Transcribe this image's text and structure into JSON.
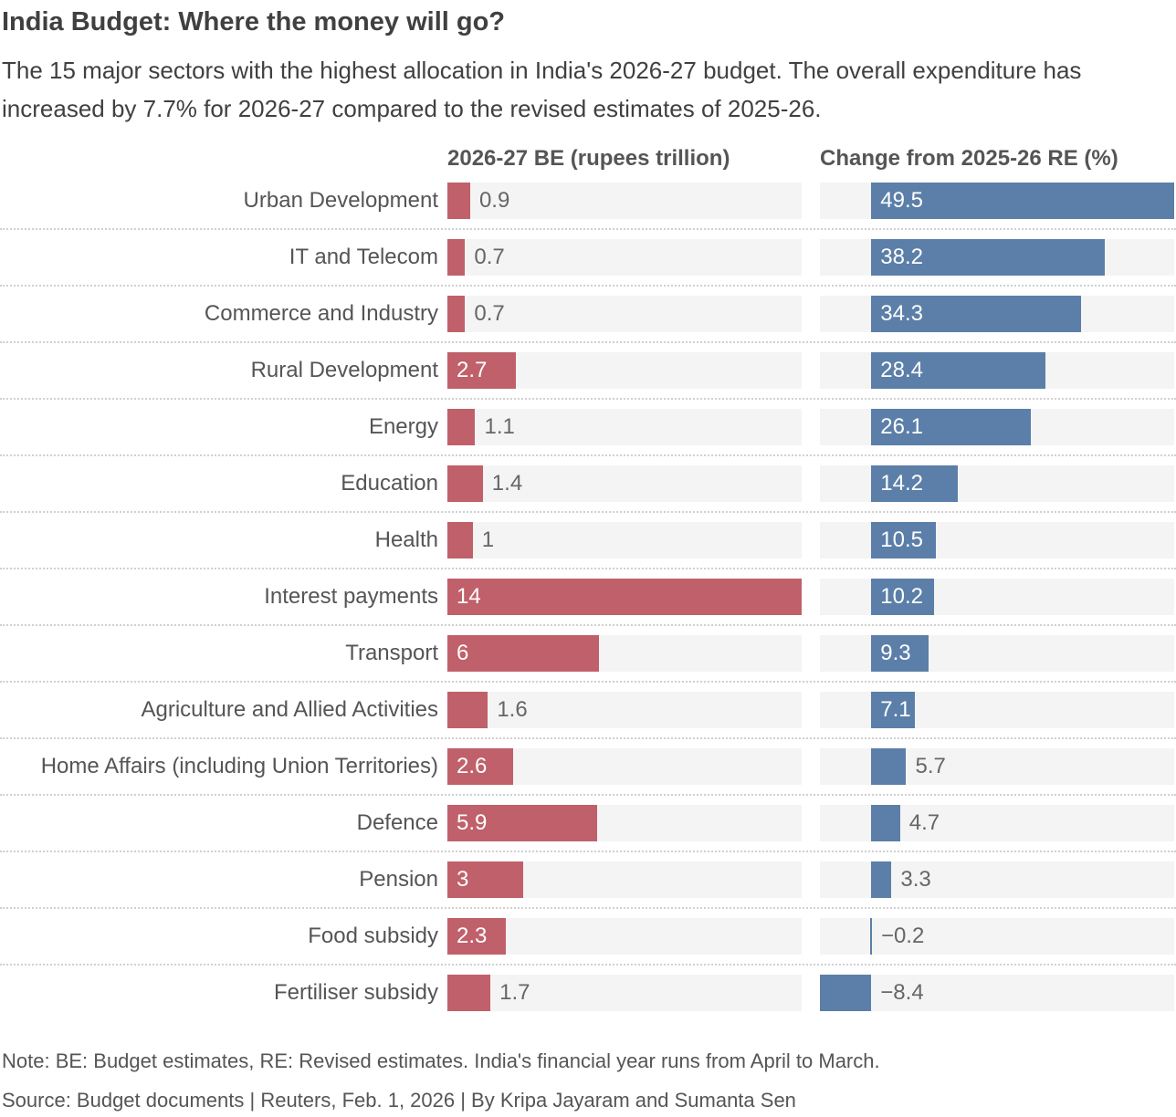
{
  "title": "India Budget: Where the money will go?",
  "subtitle": "The 15 major sectors with the highest allocation in India's 2026-27 budget. The overall expenditure has increased by 7.7% for 2026-27 compared to the revised estimates of 2025-26.",
  "note": "Note: BE: Budget estimates, RE: Revised estimates. India's financial year runs from April to March.",
  "source": "Source: Budget documents | Reuters, Feb. 1, 2026 | By Kripa Jayaram and Sumanta Sen",
  "chart_data": {
    "type": "bar",
    "orientation": "horizontal",
    "categories": [
      "Urban Development",
      "IT and Telecom",
      "Commerce and Industry",
      "Rural Development",
      "Energy",
      "Education",
      "Health",
      "Interest payments",
      "Transport",
      "Agriculture and Allied Activities",
      "Home Affairs (including Union Territories)",
      "Defence",
      "Pension",
      "Food subsidy",
      "Fertiliser subsidy"
    ],
    "panels": [
      {
        "title": "2026-27 BE (rupees trillion)",
        "color": "#c0606a",
        "xlim": [
          0,
          14
        ],
        "values": [
          0.9,
          0.7,
          0.7,
          2.7,
          1.1,
          1.4,
          1,
          14,
          6,
          1.6,
          2.6,
          5.9,
          3,
          2.3,
          1.7
        ],
        "labels": [
          "0.9",
          "0.7",
          "0.7",
          "2.7",
          "1.1",
          "1.4",
          "1",
          "14",
          "6",
          "1.6",
          "2.6",
          "5.9",
          "3",
          "2.3",
          "1.7"
        ]
      },
      {
        "title": "Change from 2025-26 RE (%)",
        "color": "#5b7fa8",
        "xlim": [
          -8.4,
          49.5
        ],
        "values": [
          49.5,
          38.2,
          34.3,
          28.4,
          26.1,
          14.2,
          10.5,
          10.2,
          9.3,
          7.1,
          5.7,
          4.7,
          3.3,
          -0.2,
          -8.4
        ],
        "labels": [
          "49.5",
          "38.2",
          "34.3",
          "28.4",
          "26.1",
          "14.2",
          "10.5",
          "10.2",
          "9.3",
          "7.1",
          "5.7",
          "4.7",
          "3.3",
          "−0.2",
          "−8.4"
        ]
      }
    ]
  }
}
